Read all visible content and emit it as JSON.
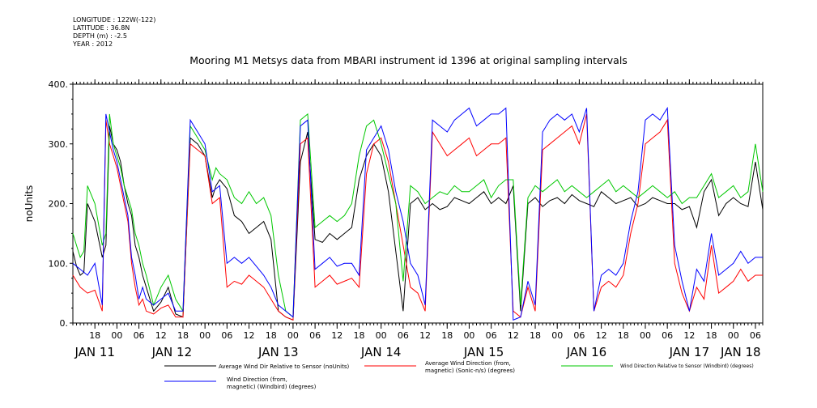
{
  "meta": {
    "longitude": "LONGITUDE : 122W(-122)",
    "latitude": "LATITUDE : 36.8N",
    "depth": "DEPTH (m) : -2.5",
    "year": "YEAR : 2012"
  },
  "chart_data": {
    "type": "line",
    "title": "Mooring M1 Metsys data from MBARI instrument id 1396 at original sampling intervals",
    "ylabel": "noUnits",
    "xlabel": "",
    "ylim": [
      0,
      400
    ],
    "xlim_hours": [
      0,
      188
    ],
    "y_ticks": [
      "0.",
      "100.",
      "200.",
      "300.",
      "400."
    ],
    "x_hour_ticks": [
      {
        "h": 6,
        "label": "18"
      },
      {
        "h": 12,
        "label": "00"
      },
      {
        "h": 18,
        "label": "06"
      },
      {
        "h": 24,
        "label": "12"
      },
      {
        "h": 30,
        "label": "18"
      },
      {
        "h": 36,
        "label": "00"
      },
      {
        "h": 42,
        "label": "06"
      },
      {
        "h": 48,
        "label": "12"
      },
      {
        "h": 54,
        "label": "18"
      },
      {
        "h": 60,
        "label": "00"
      },
      {
        "h": 66,
        "label": "06"
      },
      {
        "h": 72,
        "label": "12"
      },
      {
        "h": 78,
        "label": "18"
      },
      {
        "h": 84,
        "label": "00"
      },
      {
        "h": 90,
        "label": "06"
      },
      {
        "h": 96,
        "label": "12"
      },
      {
        "h": 102,
        "label": "18"
      },
      {
        "h": 108,
        "label": "00"
      },
      {
        "h": 114,
        "label": "06"
      },
      {
        "h": 120,
        "label": "12"
      },
      {
        "h": 126,
        "label": "18"
      },
      {
        "h": 132,
        "label": "00"
      },
      {
        "h": 138,
        "label": "06"
      },
      {
        "h": 144,
        "label": "12"
      },
      {
        "h": 150,
        "label": "18"
      },
      {
        "h": 156,
        "label": "00"
      },
      {
        "h": 162,
        "label": "06"
      },
      {
        "h": 168,
        "label": "12"
      },
      {
        "h": 174,
        "label": "18"
      },
      {
        "h": 180,
        "label": "00"
      },
      {
        "h": 186,
        "label": "06"
      }
    ],
    "x_day_labels": [
      {
        "h": 6,
        "label": "JAN 11"
      },
      {
        "h": 27,
        "label": "JAN 12"
      },
      {
        "h": 56,
        "label": "JAN 13"
      },
      {
        "h": 84,
        "label": "JAN 14"
      },
      {
        "h": 112,
        "label": "JAN 15"
      },
      {
        "h": 140,
        "label": "JAN 16"
      },
      {
        "h": 168,
        "label": "JAN 17"
      },
      {
        "h": 182,
        "label": "JAN 18"
      }
    ],
    "series": [
      {
        "name": "Average Wind Dir Relative to Sensor (noUnits)",
        "color": "#000000",
        "x": [
          0,
          1,
          2,
          3,
          4,
          6,
          8,
          9,
          10,
          11,
          12,
          13,
          14,
          15,
          16,
          17,
          18,
          19,
          20,
          22,
          24,
          26,
          28,
          30,
          32,
          34,
          36,
          38,
          39,
          40,
          42,
          44,
          46,
          48,
          50,
          52,
          54,
          56,
          58,
          60,
          62,
          64,
          66,
          68,
          70,
          72,
          74,
          76,
          78,
          80,
          82,
          84,
          86,
          88,
          90,
          92,
          94,
          96,
          98,
          100,
          102,
          104,
          106,
          108,
          110,
          112,
          114,
          116,
          118,
          120,
          122,
          124,
          126,
          128,
          130,
          132,
          134,
          136,
          138,
          140,
          142,
          144,
          146,
          148,
          150,
          152,
          154,
          156,
          158,
          160,
          162,
          164,
          166,
          168,
          170,
          172,
          174,
          176,
          178,
          180,
          182,
          184,
          186,
          188
        ],
        "y": [
          120,
          95,
          80,
          85,
          200,
          170,
          110,
          130,
          330,
          300,
          290,
          270,
          230,
          200,
          180,
          130,
          110,
          80,
          60,
          20,
          35,
          60,
          15,
          10,
          310,
          300,
          280,
          210,
          230,
          240,
          225,
          180,
          170,
          150,
          160,
          170,
          140,
          20,
          10,
          5,
          270,
          320,
          140,
          135,
          150,
          140,
          150,
          160,
          240,
          280,
          300,
          280,
          220,
          120,
          20,
          200,
          210,
          190,
          200,
          190,
          195,
          210,
          205,
          200,
          210,
          220,
          200,
          210,
          200,
          230,
          20,
          200,
          210,
          195,
          205,
          210,
          200,
          215,
          205,
          200,
          195,
          220,
          210,
          200,
          205,
          210,
          195,
          200,
          210,
          205,
          200,
          200,
          190,
          195,
          160,
          220,
          240,
          180,
          200,
          210,
          200,
          195,
          270,
          190
        ]
      },
      {
        "name": "Average Wind Direction (from, magnetic) (Sonic-n/s) (degrees)",
        "color": "#ff0000",
        "x": [
          0,
          2,
          4,
          6,
          8,
          9,
          10,
          11,
          12,
          13,
          14,
          15,
          16,
          17,
          18,
          19,
          20,
          22,
          24,
          26,
          28,
          30,
          32,
          34,
          36,
          38,
          40,
          42,
          44,
          46,
          48,
          50,
          52,
          54,
          56,
          58,
          60,
          62,
          64,
          66,
          68,
          70,
          72,
          74,
          76,
          78,
          80,
          82,
          84,
          86,
          88,
          90,
          92,
          94,
          96,
          98,
          100,
          102,
          104,
          106,
          108,
          110,
          112,
          114,
          116,
          118,
          120,
          122,
          124,
          126,
          128,
          130,
          132,
          134,
          136,
          138,
          140,
          142,
          144,
          146,
          148,
          150,
          152,
          154,
          156,
          158,
          160,
          162,
          164,
          166,
          168,
          170,
          172,
          174,
          176,
          178,
          180,
          182,
          184,
          186,
          188
        ],
        "y": [
          80,
          60,
          50,
          55,
          20,
          340,
          300,
          280,
          260,
          230,
          200,
          170,
          100,
          60,
          30,
          40,
          20,
          15,
          25,
          30,
          10,
          10,
          300,
          290,
          280,
          200,
          210,
          60,
          70,
          65,
          80,
          70,
          60,
          40,
          20,
          10,
          5,
          300,
          310,
          60,
          70,
          80,
          65,
          70,
          75,
          60,
          250,
          300,
          310,
          270,
          200,
          130,
          60,
          50,
          20,
          320,
          300,
          280,
          290,
          300,
          310,
          280,
          290,
          300,
          300,
          310,
          20,
          10,
          60,
          20,
          290,
          300,
          310,
          320,
          330,
          300,
          350,
          20,
          60,
          70,
          60,
          80,
          150,
          200,
          300,
          310,
          320,
          340,
          100,
          50,
          20,
          60,
          40,
          130,
          50,
          60,
          70,
          90,
          70,
          80,
          80
        ]
      },
      {
        "name": "Wind Direction Relative to Sensor (Windbird) (degrees)",
        "color": "#00c800",
        "x": [
          0,
          1,
          2,
          3,
          4,
          6,
          8,
          9,
          10,
          11,
          12,
          13,
          14,
          15,
          16,
          17,
          18,
          19,
          20,
          22,
          24,
          26,
          28,
          30,
          32,
          34,
          36,
          38,
          39,
          40,
          42,
          44,
          46,
          48,
          50,
          52,
          54,
          56,
          58,
          60,
          62,
          64,
          66,
          68,
          70,
          72,
          74,
          76,
          78,
          80,
          82,
          84,
          86,
          88,
          90,
          92,
          94,
          96,
          98,
          100,
          102,
          104,
          106,
          108,
          110,
          112,
          114,
          116,
          118,
          120,
          122,
          124,
          126,
          128,
          130,
          132,
          134,
          136,
          138,
          140,
          142,
          144,
          146,
          148,
          150,
          152,
          154,
          156,
          158,
          160,
          162,
          164,
          166,
          168,
          170,
          172,
          174,
          176,
          178,
          180,
          182,
          184,
          186,
          188
        ],
        "y": [
          150,
          130,
          110,
          120,
          230,
          200,
          130,
          150,
          350,
          300,
          280,
          260,
          230,
          210,
          190,
          150,
          130,
          100,
          80,
          30,
          60,
          80,
          40,
          20,
          330,
          310,
          290,
          240,
          260,
          250,
          240,
          210,
          200,
          220,
          200,
          210,
          180,
          80,
          20,
          10,
          340,
          350,
          160,
          170,
          180,
          170,
          180,
          200,
          280,
          330,
          340,
          300,
          250,
          200,
          70,
          230,
          220,
          200,
          210,
          220,
          215,
          230,
          220,
          220,
          230,
          240,
          210,
          230,
          240,
          240,
          30,
          210,
          230,
          220,
          230,
          240,
          220,
          230,
          220,
          210,
          220,
          230,
          240,
          220,
          230,
          220,
          210,
          220,
          230,
          220,
          210,
          220,
          200,
          210,
          210,
          230,
          250,
          210,
          220,
          230,
          210,
          220,
          300,
          220
        ]
      },
      {
        "name": "Wind Direction (from, magnetic) (Windbird) (degrees)",
        "color": "#0000ff",
        "x": [
          0,
          2,
          4,
          6,
          8,
          9,
          10,
          11,
          12,
          13,
          14,
          15,
          16,
          17,
          18,
          19,
          20,
          22,
          24,
          26,
          28,
          30,
          32,
          34,
          36,
          38,
          40,
          42,
          44,
          46,
          48,
          50,
          52,
          54,
          56,
          58,
          60,
          62,
          64,
          66,
          68,
          70,
          72,
          74,
          76,
          78,
          80,
          82,
          84,
          86,
          88,
          90,
          92,
          94,
          96,
          98,
          100,
          102,
          104,
          106,
          108,
          110,
          112,
          114,
          116,
          118,
          120,
          122,
          124,
          126,
          128,
          130,
          132,
          134,
          136,
          138,
          140,
          142,
          144,
          146,
          148,
          150,
          152,
          154,
          156,
          158,
          160,
          162,
          164,
          166,
          168,
          170,
          172,
          174,
          176,
          178,
          180,
          182,
          184,
          186,
          188
        ],
        "y": [
          100,
          90,
          80,
          100,
          30,
          350,
          320,
          290,
          270,
          240,
          210,
          180,
          110,
          80,
          40,
          60,
          40,
          30,
          40,
          50,
          20,
          20,
          340,
          320,
          300,
          220,
          230,
          100,
          110,
          100,
          110,
          95,
          80,
          60,
          30,
          20,
          10,
          330,
          340,
          90,
          100,
          110,
          95,
          100,
          100,
          80,
          290,
          310,
          330,
          290,
          220,
          170,
          100,
          80,
          30,
          340,
          330,
          320,
          340,
          350,
          360,
          330,
          340,
          350,
          350,
          360,
          5,
          10,
          70,
          30,
          320,
          340,
          350,
          340,
          350,
          320,
          360,
          20,
          80,
          90,
          80,
          100,
          170,
          220,
          340,
          350,
          340,
          360,
          130,
          70,
          20,
          90,
          70,
          150,
          80,
          90,
          100,
          120,
          100,
          110,
          110
        ]
      }
    ]
  },
  "legend": {
    "s1": "Average Wind Dir Relative to Sensor (noUnits)",
    "s2a": "Average Wind Direction (from,",
    "s2b": "magnetic) (Sonic-n/s) (degrees)",
    "s3": "Wind Direction Relative to Sensor (Windbird) (degrees)",
    "s4a": "Wind Direction (from,",
    "s4b": "magnetic) (Windbird) (degrees)"
  }
}
